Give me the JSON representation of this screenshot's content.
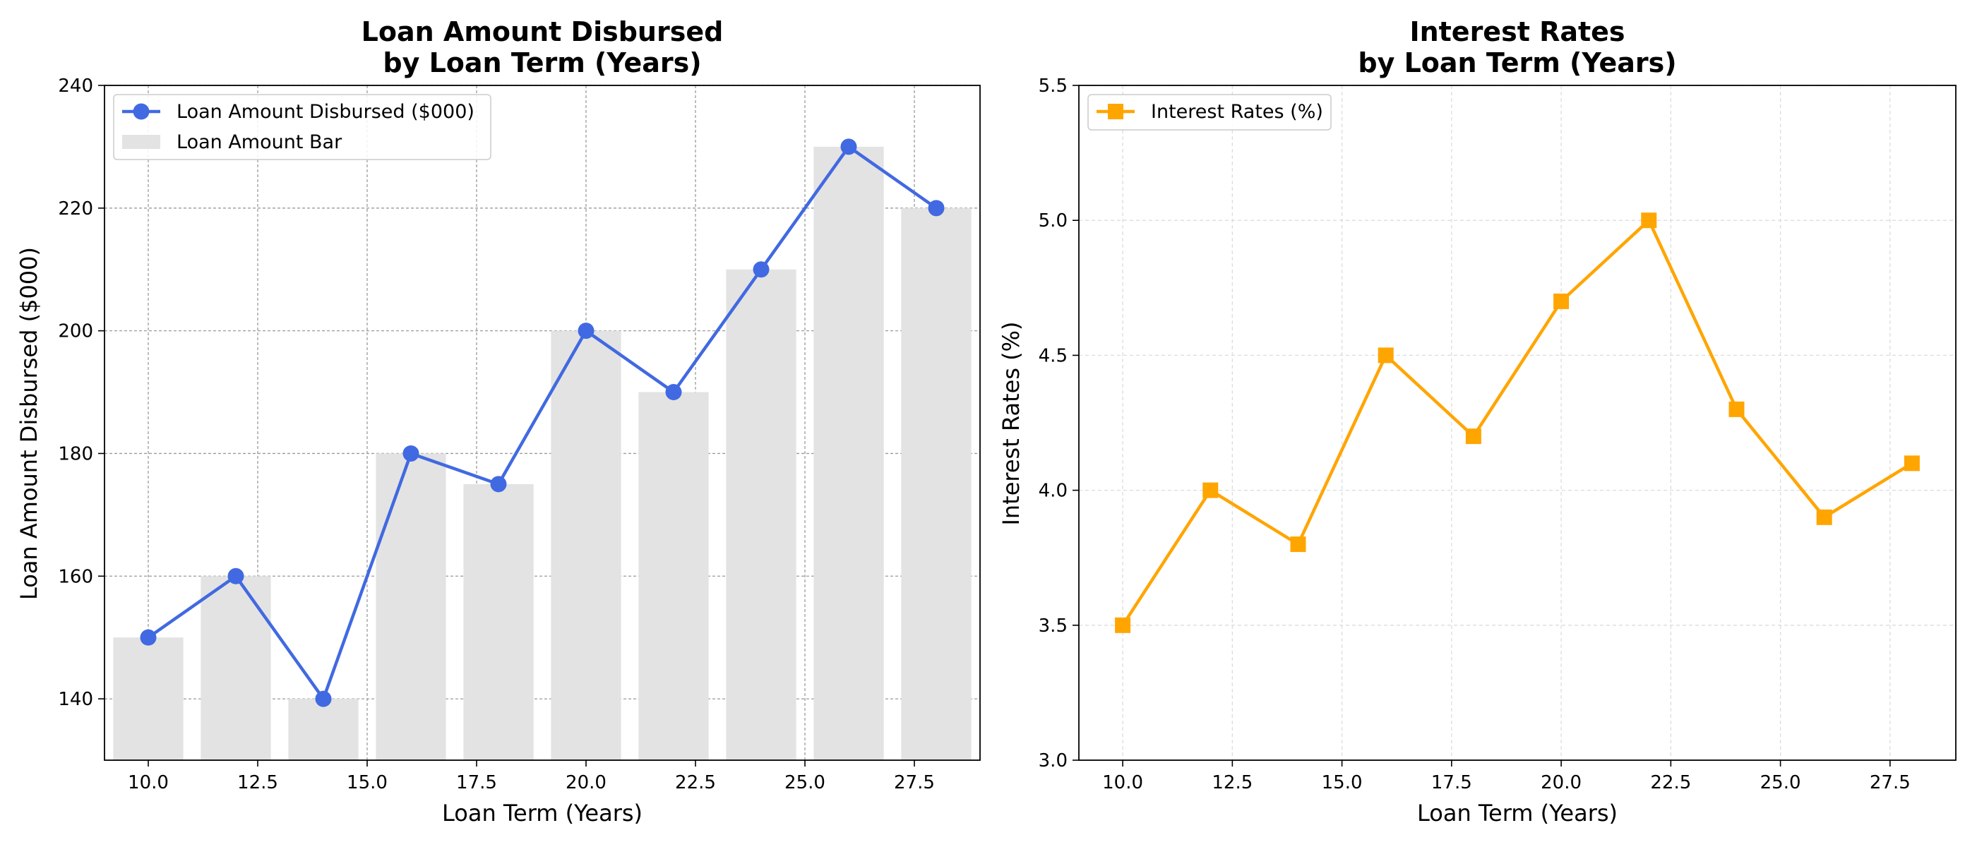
{
  "chart_data": [
    {
      "type": "line",
      "title": [
        "Loan Amount Disbursed",
        "by Loan Term (Years)"
      ],
      "xlabel": "Loan Term (Years)",
      "ylabel": "Loan Amount Disbursed ($000)",
      "x": [
        10,
        12,
        14,
        16,
        18,
        20,
        22,
        24,
        26,
        28
      ],
      "xlim": [
        9.0,
        29.0
      ],
      "ylim": [
        130,
        240
      ],
      "xticks": [
        "10.0",
        "12.5",
        "15.0",
        "17.5",
        "20.0",
        "22.5",
        "25.0",
        "27.5"
      ],
      "yticks": [
        "140",
        "160",
        "180",
        "200",
        "220",
        "240"
      ],
      "grid": true,
      "legend_position": "top-left",
      "series": [
        {
          "name": "Loan Amount Disbursed ($000)",
          "kind": "line",
          "marker": "circle",
          "color": "#4169E1",
          "values": [
            150,
            160,
            140,
            180,
            175,
            200,
            190,
            210,
            230,
            220
          ]
        },
        {
          "name": "Loan Amount Bar",
          "kind": "bar",
          "color": "#e3e3e3",
          "values": [
            150,
            160,
            140,
            180,
            175,
            200,
            190,
            210,
            230,
            220
          ]
        }
      ]
    },
    {
      "type": "line",
      "title": [
        "Interest Rates",
        "by Loan Term (Years)"
      ],
      "xlabel": "Loan Term (Years)",
      "ylabel": "Interest Rates (%)",
      "x": [
        10,
        12,
        14,
        16,
        18,
        20,
        22,
        24,
        26,
        28
      ],
      "xlim": [
        9.0,
        29.0
      ],
      "ylim": [
        3.0,
        5.5
      ],
      "xticks": [
        "10.0",
        "12.5",
        "15.0",
        "17.5",
        "20.0",
        "22.5",
        "25.0",
        "27.5"
      ],
      "yticks": [
        "3.0",
        "3.5",
        "4.0",
        "4.5",
        "5.0",
        "5.5"
      ],
      "grid": true,
      "legend_position": "top-left",
      "series": [
        {
          "name": "Interest Rates (%)",
          "kind": "line",
          "marker": "square",
          "color": "#FFA500",
          "values": [
            3.5,
            4.0,
            3.8,
            4.5,
            4.2,
            4.7,
            5.0,
            4.3,
            3.9,
            4.1
          ]
        }
      ]
    }
  ]
}
